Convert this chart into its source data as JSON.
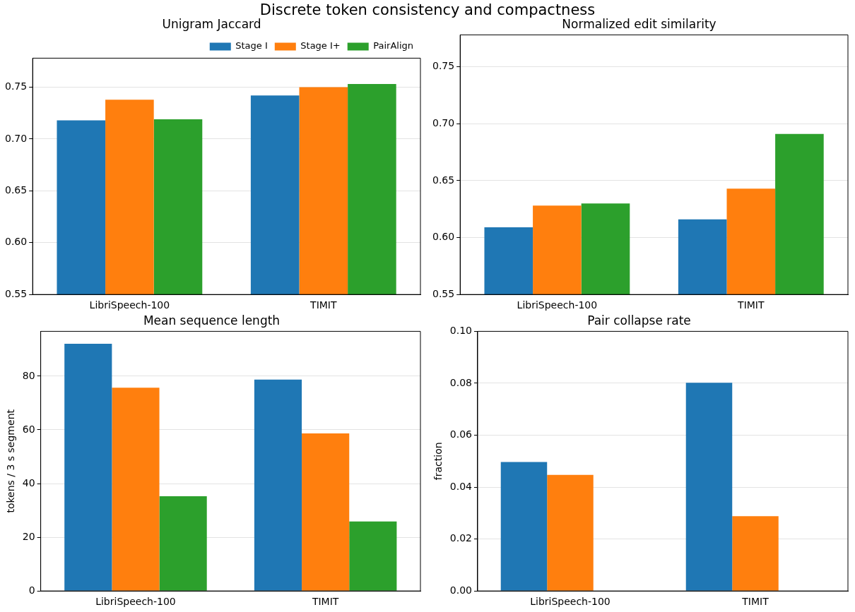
{
  "chart_data": [
    {
      "type": "bar",
      "title": "Unigram Jaccard",
      "annotations": [
        "Discrete token consistency and compactness"
      ],
      "categories": [
        "LibriSpeech-100",
        "TIMIT"
      ],
      "series": [
        {
          "name": "Stage I",
          "color": "#1f77b4",
          "values": [
            0.718,
            0.742
          ]
        },
        {
          "name": "Stage I+",
          "color": "#ff7f0e",
          "values": [
            0.738,
            0.75
          ]
        },
        {
          "name": "PairAlign",
          "color": "#2ca02c",
          "values": [
            0.719,
            0.753
          ]
        }
      ],
      "ylim": [
        0.55,
        0.778
      ],
      "yticks": [
        0.55,
        {
          "value": 0.6,
          "label": "0.60"
        },
        0.65,
        {
          "value": 0.7,
          "label": "0.70"
        },
        0.75
      ],
      "grid": "y",
      "legend": "top right"
    },
    {
      "type": "bar",
      "title": "Normalized edit similarity",
      "categories": [
        "LibriSpeech-100",
        "TIMIT"
      ],
      "series": [
        {
          "color": "#1f77b4",
          "values": [
            0.609,
            0.616
          ]
        },
        {
          "color": "#ff7f0e",
          "values": [
            0.628,
            0.643
          ]
        },
        {
          "color": "#2ca02c",
          "values": [
            0.63,
            0.691
          ]
        }
      ],
      "ylim": [
        0.55,
        0.778
      ],
      "yticks": [
        0.55,
        {
          "value": 0.6,
          "label": "0.60"
        },
        0.65,
        {
          "value": 0.7,
          "label": "0.70"
        },
        0.75
      ],
      "grid": "y"
    },
    {
      "type": "bar",
      "title": "Mean sequence length",
      "ylabel": "tokens / 3 s segment",
      "categories": [
        "LibriSpeech-100",
        "TIMIT"
      ],
      "series": [
        {
          "color": "#1f77b4",
          "values": [
            92.1,
            78.7
          ]
        },
        {
          "color": "#ff7f0e",
          "values": [
            75.7,
            58.7
          ]
        },
        {
          "color": "#2ca02c",
          "values": [
            35.3,
            25.9
          ]
        }
      ],
      "ylim": [
        0,
        96.7
      ],
      "yticks": [
        0,
        20,
        40,
        60,
        80
      ],
      "grid": "y"
    },
    {
      "type": "bar",
      "title": "Pair collapse rate",
      "ylabel": "fraction",
      "categories": [
        "LibriSpeech-100",
        "TIMIT"
      ],
      "series": [
        {
          "color": "#1f77b4",
          "values": [
            0.0497,
            0.0802
          ]
        },
        {
          "color": "#ff7f0e",
          "values": [
            0.0447,
            0.0288
          ]
        },
        {
          "color": "#2ca02c",
          "values": [
            0,
            0
          ]
        }
      ],
      "ylim": [
        0,
        0.1
      ],
      "yticks": [
        {
          "value": 0,
          "label": "0.00"
        },
        {
          "value": 0.02,
          "label": "0.02"
        },
        {
          "value": 0.04,
          "label": "0.04"
        },
        {
          "value": 0.06,
          "label": "0.06"
        },
        {
          "value": 0.08,
          "label": "0.08"
        },
        {
          "value": 0.1,
          "label": "0.10"
        }
      ],
      "grid": "y"
    }
  ]
}
